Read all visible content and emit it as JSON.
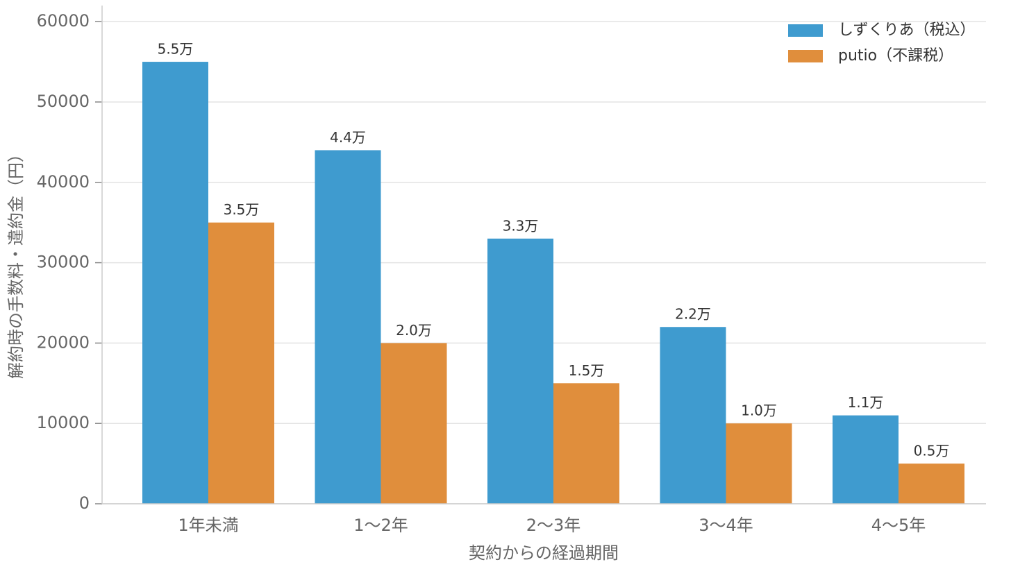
{
  "chart_data": {
    "type": "bar",
    "xlabel": "契約からの経過期間",
    "ylabel": "解約時の手数料・違約金（円）",
    "categories": [
      "1年未満",
      "1〜2年",
      "2〜3年",
      "3〜4年",
      "4〜5年"
    ],
    "series": [
      {
        "name": "しずくりあ（税込）",
        "color": "#3f9bcf",
        "values": [
          55000,
          44000,
          33000,
          22000,
          11000
        ],
        "value_labels": [
          "5.5万",
          "4.4万",
          "3.3万",
          "2.2万",
          "1.1万"
        ]
      },
      {
        "name": "putio（不課税）",
        "color": "#e08e3c",
        "values": [
          35000,
          20000,
          15000,
          10000,
          5000
        ],
        "value_labels": [
          "3.5万",
          "2.0万",
          "1.5万",
          "1.0万",
          "0.5万"
        ]
      }
    ],
    "ylim": [
      0,
      62000
    ],
    "yticks": [
      0,
      10000,
      20000,
      30000,
      40000,
      50000,
      60000
    ],
    "grid": true,
    "legend": "upper right"
  }
}
